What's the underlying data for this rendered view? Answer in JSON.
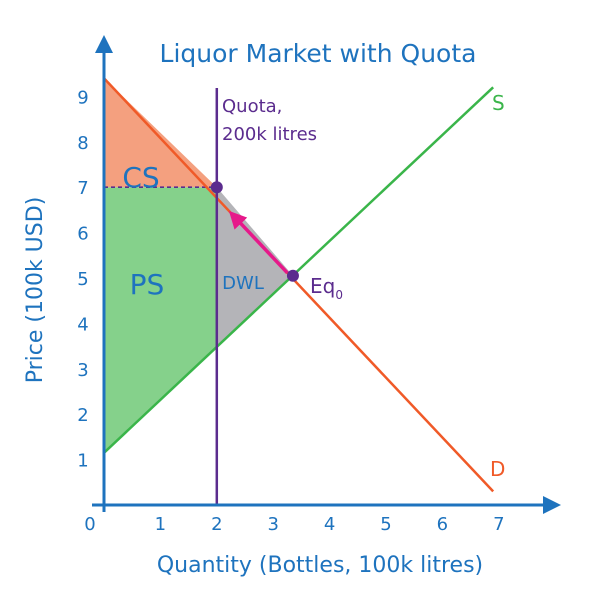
{
  "chart_data": {
    "type": "line",
    "title": "Liquor Market with Quota",
    "xlabel": "Quantity (Bottles, 100k litres)",
    "ylabel": "Price (100k USD)",
    "xlim": [
      0,
      7.8
    ],
    "ylim": [
      0,
      9.8
    ],
    "x_ticks": [
      0,
      1,
      2,
      3,
      4,
      5,
      6,
      7
    ],
    "y_ticks": [
      1,
      2,
      3,
      4,
      5,
      6,
      7,
      8,
      9
    ],
    "series": [
      {
        "name": "S",
        "x": [
          0,
          6.9
        ],
        "y": [
          1.15,
          9.2
        ],
        "color": "#3ab54a"
      },
      {
        "name": "D",
        "x": [
          0,
          6.9
        ],
        "y": [
          9.4,
          0.3
        ],
        "color": "#f05a28"
      }
    ],
    "quota": {
      "x": 2,
      "label_line1": "Quota,",
      "label_line2": "200k litres",
      "color": "#5b2c8e"
    },
    "quota_price": 7,
    "points": [
      {
        "name": "quota-price-point",
        "x": 2,
        "y": 7
      },
      {
        "name": "eq0-point",
        "x": 3.35,
        "y": 5.05,
        "label": "Eq",
        "subscript": "0"
      }
    ],
    "regions": {
      "cs": {
        "label": "CS",
        "fill": "#f4a07f"
      },
      "ps": {
        "label": "PS",
        "fill": "#85d18b"
      },
      "dwl": {
        "label": "DWL",
        "fill": "#b4b4b8"
      }
    },
    "colors": {
      "axis": "#1e73be",
      "text": "#1e73be",
      "quota": "#5b2c8e",
      "arrow": "#e6198a",
      "dashed": "#5b2c8e"
    }
  }
}
